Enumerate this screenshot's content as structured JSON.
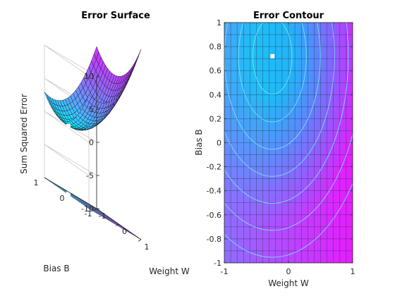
{
  "chart_data": [
    {
      "type": "surface",
      "title": "Error Surface",
      "xlabel": "Weight W",
      "ylabel": "Bias B",
      "zlabel": "Sum Squared Error",
      "xlim": [
        -1,
        1
      ],
      "ylim": [
        -1,
        1
      ],
      "zlim": [
        -10,
        10
      ],
      "xticks": [
        "-1",
        "0",
        "1"
      ],
      "yticks": [
        "-1",
        "0",
        "1"
      ],
      "zticks": [
        "-10",
        "-5",
        "0",
        "5",
        "10"
      ],
      "mesh": {
        "x_start": -1,
        "x_end": 1,
        "y_start": -1,
        "y_end": 1,
        "divisions": 20
      },
      "surface_model": {
        "form": "a*(W - w0)^2 + b*(B - b0)^2 + c",
        "a": 4.3,
        "b": 4.0,
        "w0": -0.25,
        "b0": 0.72,
        "c": 0.2
      },
      "projection_plane_z": -10,
      "current_point": {
        "W": -0.25,
        "B": 0.72,
        "SSE": 0.2
      },
      "colormap": [
        "#00ffff",
        "#ff00ff"
      ],
      "grid": true
    },
    {
      "type": "contour",
      "title": "Error Contour",
      "xlabel": "Weight W",
      "ylabel": "Bias B",
      "xlim": [
        -1,
        1
      ],
      "ylim": [
        -1,
        1
      ],
      "xticks": [
        "-1",
        "0",
        "1"
      ],
      "yticks": [
        "-1",
        "-0.8",
        "-0.6",
        "-0.4",
        "-0.2",
        "0",
        "0.2",
        "0.4",
        "0.6",
        "0.8",
        "1"
      ],
      "mesh_divisions": 20,
      "levels": [
        0.6,
        1.4,
        2.6,
        4.2,
        6.2,
        8.6,
        11.4
      ],
      "current_point": {
        "W": -0.25,
        "B": 0.72
      },
      "colormap": [
        "#00ffff",
        "#ff00ff"
      ],
      "line_color": "#70dfff"
    }
  ]
}
